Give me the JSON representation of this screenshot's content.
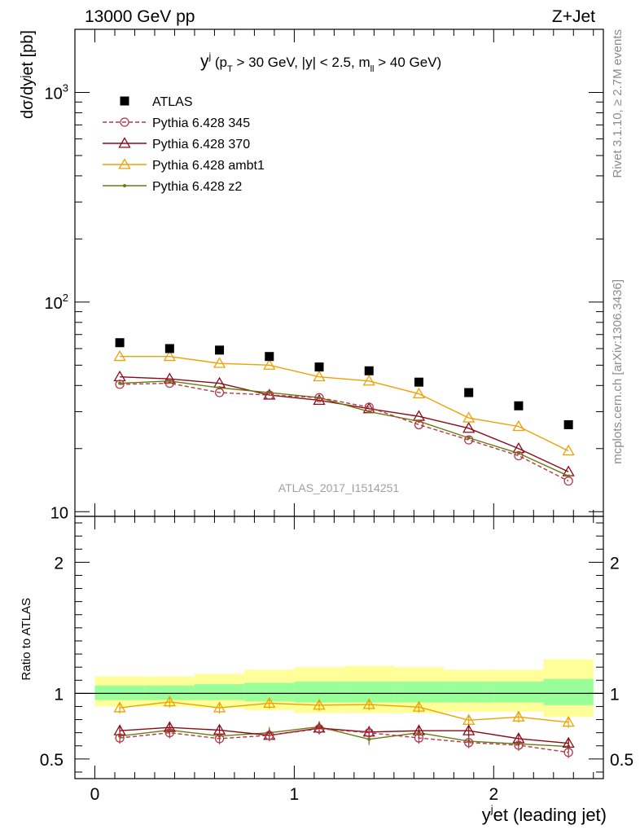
{
  "header": {
    "left": "13000 GeV pp",
    "right": "Z+Jet"
  },
  "side_labels": {
    "rivet": "Rivet 3.1.10, ≥ 2.7M events",
    "mcplots": "mcplots.cern.ch [arXiv:1306.3436]"
  },
  "chart_data": [
    {
      "type": "line",
      "panel": "main",
      "title_main": "y",
      "title_sup": "j",
      "title_rest": " (p",
      "title_sub_T": "T",
      "title_rest2": " > 30 GeV, |y| < 2.5, m",
      "title_sub_ll": "ll",
      "title_rest3": " > 40 GeV)",
      "ylabel": "dσ/dyʲet [pb]",
      "ylog": true,
      "ylim": [
        9.5,
        2000
      ],
      "xlim": [
        -0.1,
        2.55
      ],
      "ytick_labels": [
        "10",
        "10",
        "10"
      ],
      "ytick_exponents": [
        "",
        "2",
        "3"
      ],
      "watermark": "ATLAS_2017_I1514251",
      "x": [
        0.125,
        0.375,
        0.625,
        0.875,
        1.125,
        1.375,
        1.625,
        1.875,
        2.125,
        2.375
      ],
      "series": [
        {
          "name": "ATLAS",
          "color": "#000000",
          "marker": "square",
          "values": [
            64,
            60,
            59,
            55,
            49,
            47,
            41.5,
            37,
            32,
            26
          ]
        },
        {
          "name": "Pythia 6.428 345",
          "color": "#b03a48",
          "marker": "circle",
          "dashed": true,
          "values": [
            40.5,
            41,
            37,
            36,
            35,
            31.5,
            26,
            22,
            18.5,
            14
          ]
        },
        {
          "name": "Pythia 6.428 370",
          "color": "#8b0a1a",
          "marker": "triangle",
          "values": [
            44,
            43,
            41,
            36,
            34,
            31,
            28.5,
            25,
            20,
            15.5
          ]
        },
        {
          "name": "Pythia 6.428 ambt1",
          "color": "#f0a000",
          "marker": "triangle",
          "values": [
            55,
            55,
            51,
            50,
            44,
            42,
            36.5,
            28,
            25.5,
            19.5
          ]
        },
        {
          "name": "Pythia 6.428 z2",
          "color": "#6b7a10",
          "marker": "dot",
          "values": [
            41,
            42,
            39,
            37,
            35,
            30,
            27,
            22.5,
            19,
            14.8
          ]
        }
      ]
    },
    {
      "type": "line",
      "panel": "ratio",
      "ylabel": "Ratio to ATLAS",
      "ylim": [
        0.35,
        2.35
      ],
      "ytick_labels": [
        "0.5",
        "1",
        "2"
      ],
      "xlabel_main": "y",
      "xlabel_sup": "j",
      "xlabel_rest": "et (leading jet)",
      "xtick_labels": [
        "0",
        "1",
        "2"
      ],
      "bands": {
        "edges": [
          0,
          0.25,
          0.5,
          0.75,
          1.0,
          1.25,
          1.5,
          1.75,
          2.0,
          2.25,
          2.5
        ],
        "stat_lo": [
          0.95,
          0.95,
          0.95,
          0.94,
          0.93,
          0.93,
          0.93,
          0.93,
          0.93,
          0.91
        ],
        "stat_hi": [
          1.06,
          1.06,
          1.07,
          1.08,
          1.09,
          1.09,
          1.09,
          1.09,
          1.09,
          1.11
        ],
        "tot_lo": [
          0.9,
          0.9,
          0.89,
          0.87,
          0.85,
          0.85,
          0.85,
          0.86,
          0.86,
          0.82
        ],
        "tot_hi": [
          1.13,
          1.13,
          1.15,
          1.18,
          1.2,
          1.21,
          1.2,
          1.18,
          1.18,
          1.26
        ]
      },
      "x": [
        0.125,
        0.375,
        0.625,
        0.875,
        1.125,
        1.375,
        1.625,
        1.875,
        2.125,
        2.375
      ],
      "series": [
        {
          "name": "Pythia 6.428 345",
          "values": [
            0.66,
            0.7,
            0.655,
            0.68,
            0.73,
            0.7,
            0.66,
            0.625,
            0.605,
            0.55
          ]
        },
        {
          "name": "Pythia 6.428 370",
          "values": [
            0.715,
            0.74,
            0.72,
            0.68,
            0.735,
            0.705,
            0.715,
            0.715,
            0.655,
            0.62
          ]
        },
        {
          "name": "Pythia 6.428 ambt1",
          "values": [
            0.89,
            0.935,
            0.89,
            0.925,
            0.91,
            0.915,
            0.895,
            0.795,
            0.82,
            0.78
          ]
        },
        {
          "name": "Pythia 6.428 z2",
          "values": [
            0.675,
            0.72,
            0.675,
            0.7,
            0.745,
            0.65,
            0.7,
            0.635,
            0.615,
            0.595
          ]
        }
      ]
    }
  ]
}
